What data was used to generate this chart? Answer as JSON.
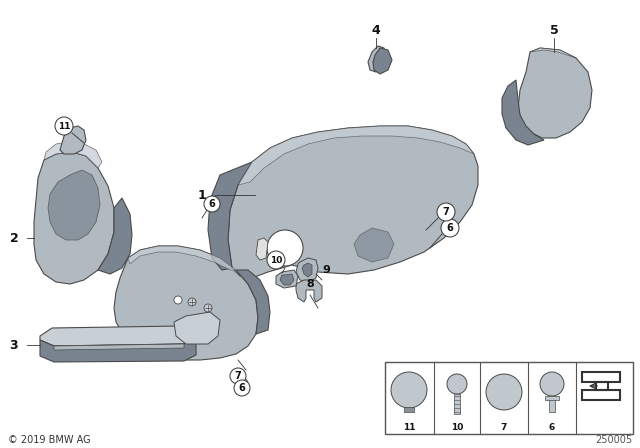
{
  "bg_color": "#ffffff",
  "part_color": "#9aa4ac",
  "part_color_light": "#c8d0d6",
  "part_color_dark": "#7a8490",
  "part_color_mid": "#b0bac0",
  "outline_color": "#4a4a4a",
  "text_color": "#111111",
  "copyright_text": "© 2019 BMW AG",
  "part_number": "250005",
  "fig_width": 6.4,
  "fig_height": 4.48,
  "dpi": 100
}
